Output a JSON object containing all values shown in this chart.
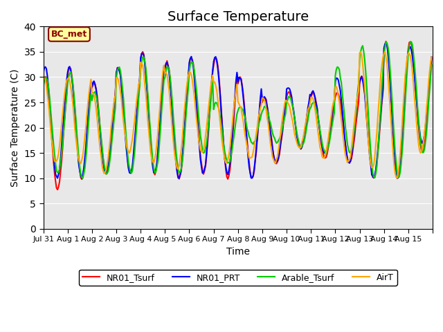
{
  "title": "Surface Temperature",
  "ylabel": "Surface Temperature (C)",
  "xlabel": "Time",
  "ylim": [
    0,
    40
  ],
  "yticks": [
    0,
    5,
    10,
    15,
    20,
    25,
    30,
    35,
    40
  ],
  "annotation_text": "BC_met",
  "annotation_color": "#8B0000",
  "annotation_bg": "#FFFFA0",
  "colors": {
    "NR01_Tsurf": "#FF0000",
    "NR01_PRT": "#0000FF",
    "Arable_Tsurf": "#00CC00",
    "AirT": "#FFA500"
  },
  "legend_labels": [
    "NR01_Tsurf",
    "NR01_PRT",
    "Arable_Tsurf",
    "AirT"
  ],
  "xtick_labels": [
    "Jul 31",
    "Aug 1",
    "Aug 2",
    "Aug 3",
    "Aug 4",
    "Aug 5",
    "Aug 6",
    "Aug 7",
    "Aug 8",
    "Aug 9",
    "Aug 10",
    "Aug 11",
    "Aug 12",
    "Aug 13",
    "Aug 14",
    "Aug 15",
    ""
  ],
  "background_color": "#E8E8E8",
  "fig_background": "#FFFFFF",
  "title_fontsize": 14,
  "label_fontsize": 10,
  "line_width": 1.5,
  "daily_peaks": [
    30,
    32,
    29,
    32,
    35,
    33,
    34,
    34,
    30,
    26,
    27,
    27,
    27,
    30,
    37,
    37
  ],
  "daily_mins": [
    8,
    10,
    11,
    11,
    11,
    10,
    11,
    10,
    10,
    13,
    16,
    14,
    13,
    10,
    10,
    15
  ],
  "prt_peaks": [
    32,
    32,
    29,
    32,
    35,
    33,
    34,
    34,
    30,
    26,
    28,
    27,
    30,
    30,
    37,
    36
  ],
  "prt_mins": [
    10,
    10,
    11,
    11,
    11,
    10,
    11,
    11,
    10,
    13,
    16,
    15,
    13,
    10,
    10,
    17
  ],
  "arable_peaks": [
    30,
    31,
    27,
    32,
    34,
    32,
    33,
    25,
    24,
    24,
    26,
    25,
    32,
    36,
    37,
    37
  ],
  "arable_mins": [
    11,
    10,
    11,
    11,
    11,
    11,
    15,
    13,
    17,
    17,
    16,
    15,
    15,
    10,
    10,
    15
  ],
  "air_peaks": [
    30,
    30,
    27,
    30,
    33,
    31,
    31,
    29,
    25,
    26,
    25,
    26,
    28,
    35,
    35,
    35
  ],
  "air_mins": [
    13,
    13,
    11,
    15,
    13,
    12,
    15,
    13,
    14,
    13,
    16,
    14,
    13,
    12,
    10,
    15
  ]
}
